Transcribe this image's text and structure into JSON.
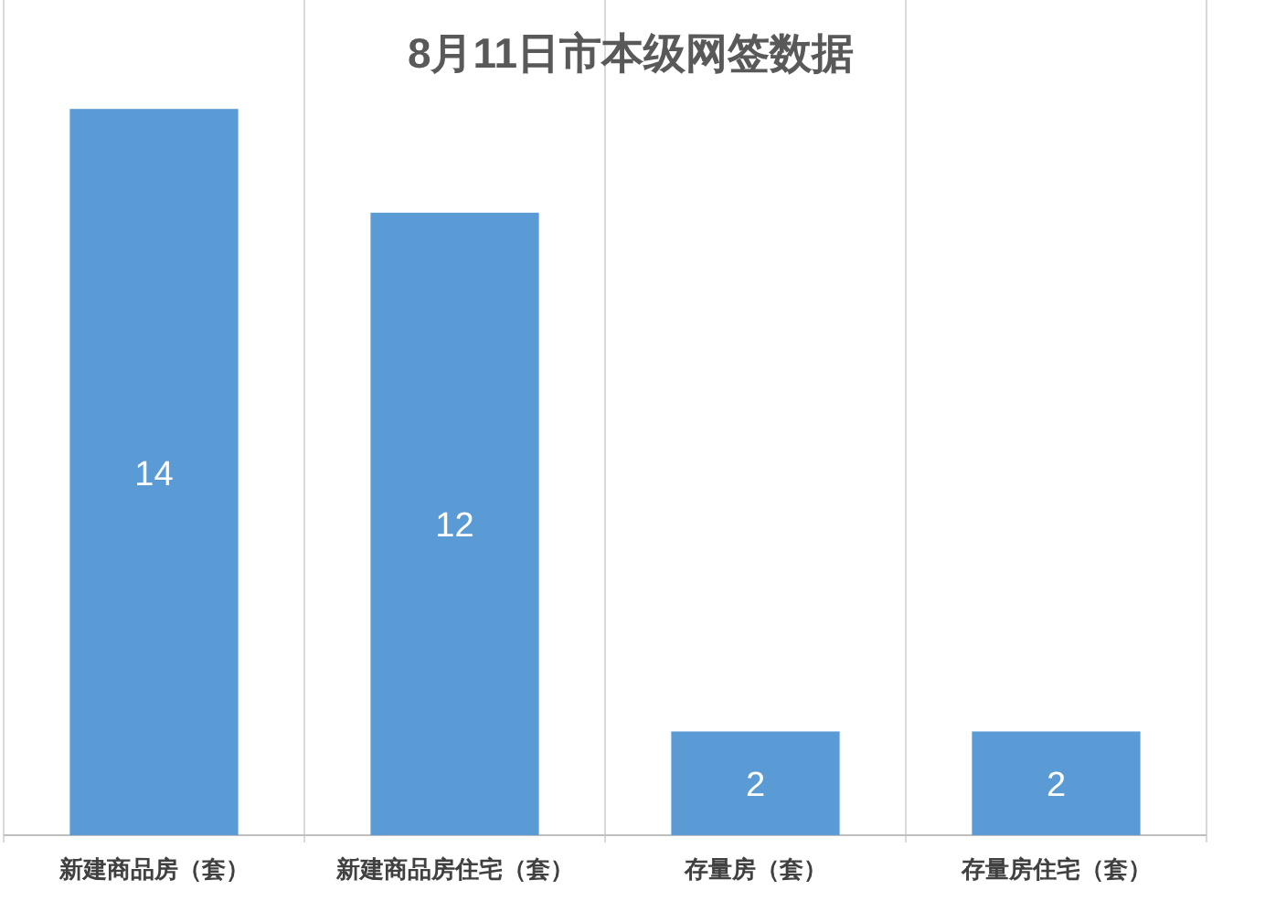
{
  "chart_data": {
    "type": "bar",
    "title": "8月11日市本级网签数据",
    "categories": [
      "新建商品房（套）",
      "新建商品房住宅（套）",
      "存量房（套）",
      "存量房住宅（套）"
    ],
    "values": [
      14,
      12,
      2,
      2
    ],
    "color": "#5b9bd5",
    "data_labels": true,
    "grid": "x"
  }
}
